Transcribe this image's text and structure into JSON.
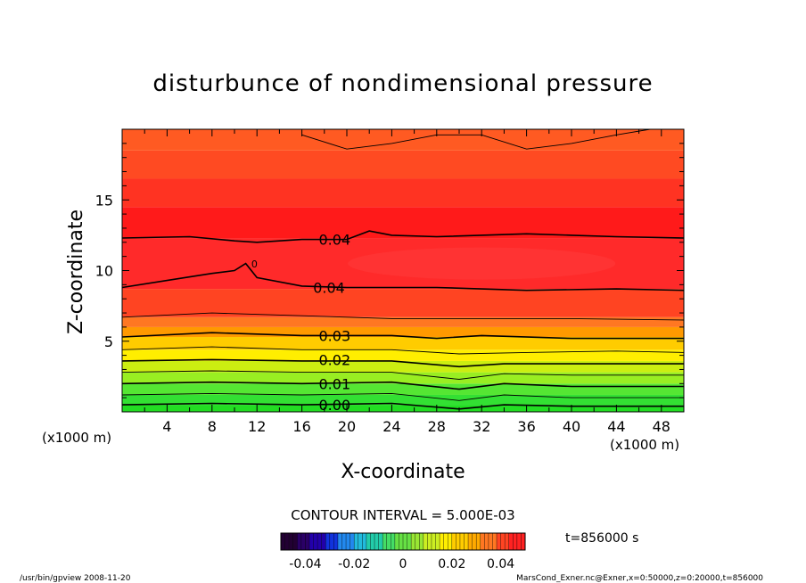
{
  "chart_data": {
    "type": "heatmap",
    "title": "disturbunce of nondimensional pressure",
    "xlabel": "X-coordinate",
    "ylabel": "Z-coordinate",
    "x_unit": "(x1000 m)",
    "z_unit": "(x1000 m)",
    "xlim": [
      0,
      50
    ],
    "ylim": [
      0,
      20
    ],
    "x_ticks": [
      4,
      8,
      12,
      16,
      20,
      24,
      28,
      32,
      36,
      40,
      44,
      48
    ],
    "y_ticks": [
      5,
      10,
      15
    ],
    "contour_interval": "CONTOUR INTERVAL = 5.000E-03",
    "time_label": "t=856000 s",
    "colorbar": {
      "range": [
        -0.05,
        0.05
      ],
      "ticks": [
        -0.04,
        -0.02,
        0,
        0.02,
        0.04
      ],
      "tick_labels": [
        "-0.04",
        "-0.02",
        "0",
        "0.02",
        "0.04"
      ]
    },
    "contour_labels": [
      {
        "text": "0.04",
        "x": 17.5,
        "z": 12.2
      },
      {
        "text": "0.04",
        "x": 17.0,
        "z": 8.8
      },
      {
        "text": "0.03",
        "x": 17.5,
        "z": 5.4
      },
      {
        "text": "0.02",
        "x": 17.5,
        "z": 3.7
      },
      {
        "text": "0.01",
        "x": 17.5,
        "z": 2.0
      },
      {
        "text": "0.00",
        "x": 17.5,
        "z": 0.5
      },
      {
        "text": "0",
        "x": 11.5,
        "z": 10.6
      }
    ],
    "contours": [
      {
        "level": 0.045,
        "points": [
          [
            16,
            19.6
          ],
          [
            20,
            18.6
          ],
          [
            24,
            19.0
          ],
          [
            28,
            19.6
          ],
          [
            32,
            19.6
          ],
          [
            36,
            18.6
          ],
          [
            40,
            19.0
          ],
          [
            44,
            19.6
          ],
          [
            47,
            20
          ]
        ]
      },
      {
        "level": 0.04,
        "points": [
          [
            0,
            12.3
          ],
          [
            6,
            12.4
          ],
          [
            10,
            12.1
          ],
          [
            12,
            12.0
          ],
          [
            16,
            12.2
          ],
          [
            20,
            12.2
          ],
          [
            22,
            12.8
          ],
          [
            24,
            12.5
          ],
          [
            28,
            12.4
          ],
          [
            36,
            12.6
          ],
          [
            40,
            12.5
          ],
          [
            44,
            12.4
          ],
          [
            50,
            12.3
          ]
        ]
      },
      {
        "level": 0.04,
        "points": [
          [
            0,
            8.8
          ],
          [
            4,
            9.3
          ],
          [
            8,
            9.8
          ],
          [
            10,
            10.0
          ],
          [
            11,
            10.5
          ],
          [
            12,
            9.5
          ],
          [
            16,
            8.9
          ],
          [
            20,
            8.8
          ],
          [
            28,
            8.8
          ],
          [
            36,
            8.6
          ],
          [
            44,
            8.7
          ],
          [
            50,
            8.6
          ]
        ]
      },
      {
        "level": 0.035,
        "points": [
          [
            0,
            6.7
          ],
          [
            8,
            7.0
          ],
          [
            16,
            6.8
          ],
          [
            24,
            6.6
          ],
          [
            32,
            6.6
          ],
          [
            40,
            6.6
          ],
          [
            50,
            6.5
          ]
        ]
      },
      {
        "level": 0.03,
        "points": [
          [
            0,
            5.3
          ],
          [
            8,
            5.6
          ],
          [
            16,
            5.4
          ],
          [
            24,
            5.4
          ],
          [
            28,
            5.2
          ],
          [
            32,
            5.4
          ],
          [
            40,
            5.2
          ],
          [
            50,
            5.2
          ]
        ]
      },
      {
        "level": 0.025,
        "points": [
          [
            0,
            4.4
          ],
          [
            8,
            4.6
          ],
          [
            16,
            4.4
          ],
          [
            24,
            4.4
          ],
          [
            30,
            4.1
          ],
          [
            36,
            4.2
          ],
          [
            44,
            4.3
          ],
          [
            50,
            4.2
          ]
        ]
      },
      {
        "level": 0.02,
        "points": [
          [
            0,
            3.6
          ],
          [
            8,
            3.7
          ],
          [
            16,
            3.6
          ],
          [
            24,
            3.6
          ],
          [
            30,
            3.2
          ],
          [
            34,
            3.4
          ],
          [
            40,
            3.4
          ],
          [
            50,
            3.4
          ]
        ]
      },
      {
        "level": 0.015,
        "points": [
          [
            0,
            2.8
          ],
          [
            8,
            2.9
          ],
          [
            16,
            2.8
          ],
          [
            24,
            2.8
          ],
          [
            30,
            2.3
          ],
          [
            34,
            2.7
          ],
          [
            40,
            2.6
          ],
          [
            50,
            2.6
          ]
        ]
      },
      {
        "level": 0.01,
        "points": [
          [
            0,
            2.0
          ],
          [
            8,
            2.1
          ],
          [
            16,
            2.0
          ],
          [
            24,
            2.1
          ],
          [
            30,
            1.6
          ],
          [
            34,
            2.0
          ],
          [
            40,
            1.8
          ],
          [
            50,
            1.8
          ]
        ]
      },
      {
        "level": 0.005,
        "points": [
          [
            0,
            1.2
          ],
          [
            8,
            1.3
          ],
          [
            16,
            1.2
          ],
          [
            24,
            1.3
          ],
          [
            30,
            0.8
          ],
          [
            34,
            1.2
          ],
          [
            40,
            1.0
          ],
          [
            50,
            1.0
          ]
        ]
      },
      {
        "level": 0.0,
        "points": [
          [
            0,
            0.5
          ],
          [
            8,
            0.6
          ],
          [
            16,
            0.5
          ],
          [
            24,
            0.6
          ],
          [
            30,
            0.2
          ],
          [
            34,
            0.5
          ],
          [
            40,
            0.4
          ],
          [
            50,
            0.4
          ]
        ]
      }
    ],
    "color_bands": [
      {
        "z0": 0.0,
        "z1": 0.5,
        "color": "#22dd22"
      },
      {
        "z0": 0.5,
        "z1": 1.2,
        "color": "#33e033"
      },
      {
        "z0": 1.2,
        "z1": 2.0,
        "color": "#55e633"
      },
      {
        "z0": 2.0,
        "z1": 2.8,
        "color": "#99ee22"
      },
      {
        "z0": 2.8,
        "z1": 3.6,
        "color": "#ccee11"
      },
      {
        "z0": 3.6,
        "z1": 4.4,
        "color": "#ffee00"
      },
      {
        "z0": 4.4,
        "z1": 5.3,
        "color": "#ffcc00"
      },
      {
        "z0": 5.3,
        "z1": 6.0,
        "color": "#ff9900"
      },
      {
        "z0": 6.0,
        "z1": 6.7,
        "color": "#ff7722"
      },
      {
        "z0": 6.7,
        "z1": 8.7,
        "color": "#ff4422"
      },
      {
        "z0": 8.7,
        "z1": 12.3,
        "color": "#ff2a2a"
      },
      {
        "z0": 12.3,
        "z1": 14.5,
        "color": "#ff1a1a"
      },
      {
        "z0": 14.5,
        "z1": 16.5,
        "color": "#ff3322"
      },
      {
        "z0": 16.5,
        "z1": 18.5,
        "color": "#ff4a22"
      },
      {
        "z0": 18.5,
        "z1": 20.0,
        "color": "#ff5a22"
      }
    ],
    "colorbar_colors": [
      "#220033",
      "#2a0066",
      "#2200aa",
      "#1133dd",
      "#2288ee",
      "#22bbdd",
      "#22ccaa",
      "#44dd66",
      "#66e044",
      "#99e633",
      "#ccee22",
      "#ffee00",
      "#ffcc00",
      "#ffaa00",
      "#ff7722",
      "#ff4422",
      "#ff2222"
    ]
  },
  "footer": {
    "left": "/usr/bin/gpview   2008-11-20",
    "right": "MarsCond_Exner.nc@Exner,x=0:50000,z=0:20000,t=856000"
  }
}
